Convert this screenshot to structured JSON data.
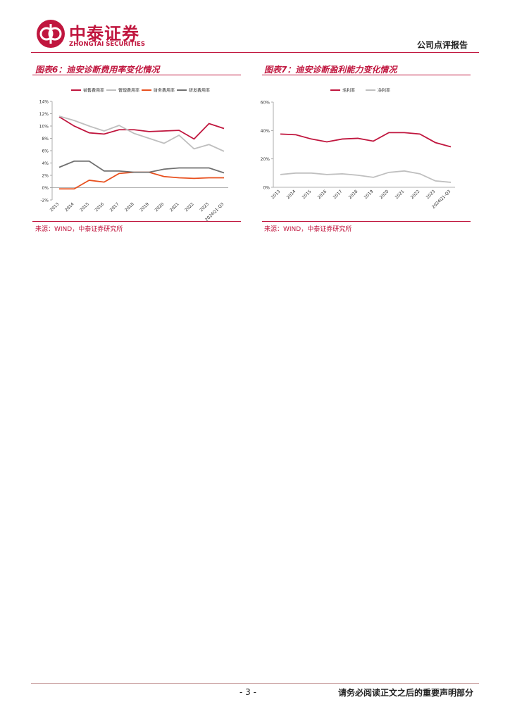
{
  "header": {
    "logo_cn": "中泰证券",
    "logo_en": "ZHONGTAI SECURITIES",
    "report_type": "公司点评报告"
  },
  "figures": [
    {
      "title": "图表6：迪安诊断费用率变化情况",
      "source": "来源：WIND，中泰证券研究所"
    },
    {
      "title": "图表7：迪安诊断盈利能力变化情况",
      "source": "来源：WIND，中泰证券研究所"
    }
  ],
  "chart_data": [
    {
      "type": "line",
      "categories": [
        "2013",
        "2014",
        "2015",
        "2016",
        "2017",
        "2018",
        "2019",
        "2020",
        "2021",
        "2022",
        "2023",
        "2024Q1-Q3"
      ],
      "series": [
        {
          "name": "销售费用率",
          "color": "#c0163e",
          "values": [
            11.5,
            10.0,
            8.9,
            8.7,
            9.4,
            9.4,
            9.1,
            9.2,
            9.3,
            7.9,
            10.4,
            9.6
          ]
        },
        {
          "name": "管理费用率",
          "color": "#bfbfbf",
          "values": [
            11.6,
            10.9,
            10.0,
            9.2,
            10.1,
            8.8,
            8.0,
            7.2,
            8.5,
            6.3,
            7.0,
            5.9
          ]
        },
        {
          "name": "财务费用率",
          "color": "#e8501e",
          "values": [
            -0.2,
            -0.2,
            1.2,
            0.9,
            2.3,
            2.5,
            2.5,
            1.8,
            1.6,
            1.5,
            1.6,
            1.6
          ]
        },
        {
          "name": "研发费用率",
          "color": "#707070",
          "values": [
            3.3,
            4.3,
            4.3,
            2.7,
            2.7,
            2.5,
            2.5,
            3.0,
            3.2,
            3.2,
            3.2,
            2.4
          ]
        }
      ],
      "ylim": [
        -2,
        14
      ],
      "yticks": [
        {
          "value": -2,
          "label": "-2%"
        },
        {
          "value": 0,
          "label": "0%"
        },
        {
          "value": 2,
          "label": "2%"
        },
        {
          "value": 4,
          "label": "4%"
        },
        {
          "value": 6,
          "label": "6%"
        },
        {
          "value": 8,
          "label": "8%"
        },
        {
          "value": 10,
          "label": "10%"
        },
        {
          "value": 12,
          "label": "12%"
        },
        {
          "value": 14,
          "label": "14%"
        }
      ],
      "legend": "top"
    },
    {
      "type": "line",
      "categories": [
        "2013",
        "2014",
        "2015",
        "2016",
        "2017",
        "2018",
        "2019",
        "2020",
        "2021",
        "2022",
        "2023",
        "2024Q1-Q3"
      ],
      "series": [
        {
          "name": "毛利率",
          "color": "#c0163e",
          "values": [
            37.5,
            37,
            34,
            32,
            34,
            34.5,
            32.5,
            38.5,
            38.5,
            37.5,
            31.5,
            28.5
          ]
        },
        {
          "name": "净利率",
          "color": "#bfbfbf",
          "values": [
            9,
            10,
            10,
            9,
            9.5,
            8.5,
            7,
            10.5,
            11.5,
            9.5,
            4.5,
            3.5
          ]
        }
      ],
      "ylim": [
        0,
        60
      ],
      "yticks": [
        {
          "value": 0,
          "label": "0%"
        },
        {
          "value": 20,
          "label": "20%"
        },
        {
          "value": 40,
          "label": "40%"
        },
        {
          "value": 60,
          "label": "60%"
        }
      ],
      "legend": "top"
    }
  ],
  "footer": {
    "page": "- 3 -",
    "disclaimer": "请务必阅读正文之后的重要声明部分"
  }
}
